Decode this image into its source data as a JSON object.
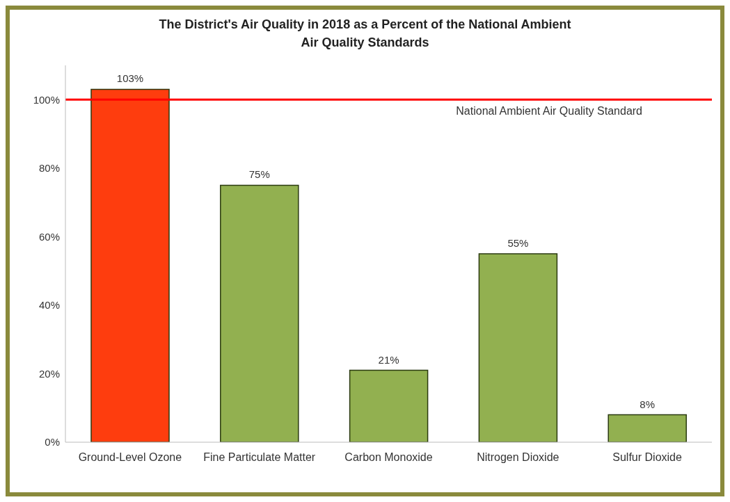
{
  "chart_data": {
    "type": "bar",
    "title": "The District's Air Quality in 2018 as a Percent of the National Ambient Air Quality Standards",
    "categories": [
      "Ground-Level Ozone",
      "Fine Particulate Matter",
      "Carbon Monoxide",
      "Nitrogen Dioxide",
      "Sulfur Dioxide"
    ],
    "values": [
      103,
      75,
      21,
      55,
      8
    ],
    "colors": [
      "#fe3d0e",
      "#92b050",
      "#92b050",
      "#92b050",
      "#92b050"
    ],
    "value_labels": [
      "103%",
      "75%",
      "21%",
      "55%",
      "8%"
    ],
    "ylim": [
      0,
      110
    ],
    "yticks": [
      {
        "value": 0,
        "label": "0%"
      },
      {
        "value": 20,
        "label": "20%"
      },
      {
        "value": 40,
        "label": "40%"
      },
      {
        "value": 60,
        "label": "60%"
      },
      {
        "value": 80,
        "label": "80%"
      },
      {
        "value": 100,
        "label": "100%"
      }
    ],
    "ref_lines": [
      {
        "axis": "y",
        "value": 100,
        "label": "National Ambient Air Quality Standard",
        "color": "#ff0000"
      }
    ],
    "grid": false,
    "legend": false
  }
}
